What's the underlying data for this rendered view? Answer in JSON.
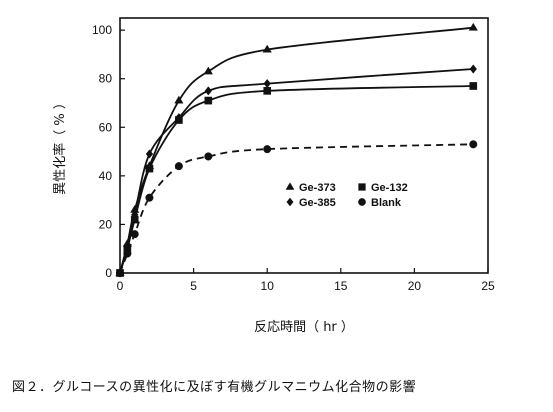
{
  "caption": "図２．グルコースの異性化に及ぼす有機グルマニウム化合物の影響",
  "colors": {
    "ink": "#111111",
    "background": "#ffffff"
  },
  "chart_data": {
    "type": "line",
    "title": "",
    "xlabel": "反応時間（ hr ）",
    "ylabel": "異性化率（ % ）",
    "xlim": [
      0,
      25
    ],
    "ylim": [
      0,
      105
    ],
    "xticks": [
      0,
      5,
      10,
      15,
      20,
      25
    ],
    "yticks": [
      0,
      20,
      40,
      60,
      80,
      100
    ],
    "grid": false,
    "legend_position": "center-right",
    "series": [
      {
        "name": "Ge-373",
        "marker": "triangle",
        "line_style": "solid",
        "x": [
          0,
          0.5,
          1,
          2,
          4,
          6,
          10,
          24
        ],
        "y": [
          0,
          12,
          26,
          44,
          71,
          83,
          92,
          101
        ]
      },
      {
        "name": "Ge-132",
        "marker": "square",
        "line_style": "solid",
        "x": [
          0,
          0.5,
          1,
          2,
          4,
          6,
          10,
          24
        ],
        "y": [
          0,
          10,
          22,
          43,
          63,
          71,
          75,
          77
        ]
      },
      {
        "name": "Ge-385",
        "marker": "diamond",
        "line_style": "solid",
        "x": [
          0,
          0.5,
          1,
          2,
          4,
          6,
          10,
          24
        ],
        "y": [
          0,
          11,
          24,
          49,
          64,
          75,
          78,
          84
        ]
      },
      {
        "name": "Blank",
        "marker": "circle",
        "line_style": "dashed",
        "x": [
          0,
          0.5,
          1,
          2,
          4,
          6,
          10,
          24
        ],
        "y": [
          0,
          8,
          16,
          31,
          44,
          48,
          51,
          53
        ]
      }
    ]
  }
}
